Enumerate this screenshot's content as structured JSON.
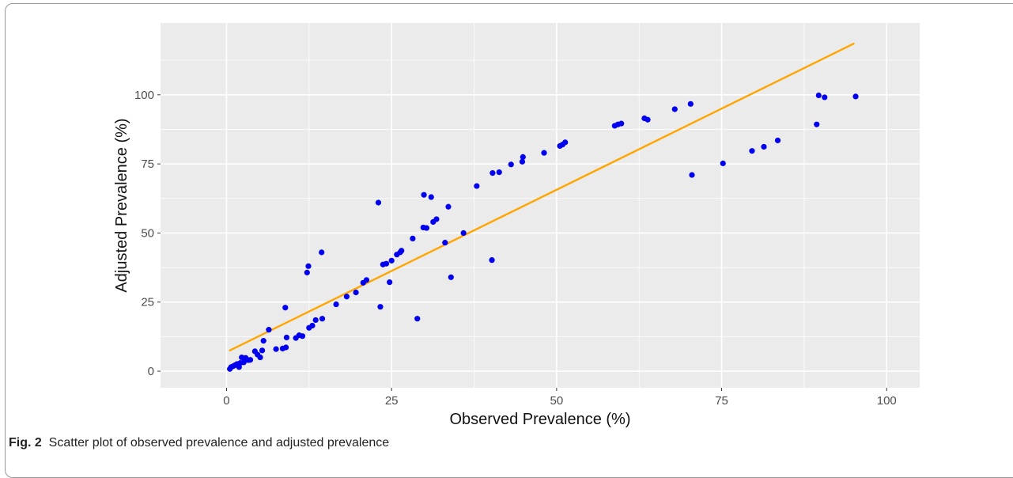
{
  "caption": {
    "label": "Fig. 2",
    "text": "Scatter plot of observed prevalence and adjusted prevalence"
  },
  "chart_data": {
    "type": "scatter",
    "xlabel": "Observed Prevalence (%)",
    "ylabel": "Adjusted Prevalence (%)",
    "xlim": [
      -10,
      105
    ],
    "ylim": [
      -6,
      126
    ],
    "xticks": [
      0,
      25,
      50,
      75,
      100
    ],
    "yticks": [
      0,
      25,
      50,
      75,
      100
    ],
    "grid": true,
    "colors": {
      "panel": "#ebebeb",
      "grid": "#ffffff",
      "points": "#0000ee",
      "fit_line": "#ffa500",
      "axis_text": "#4d4d4d"
    },
    "points": [
      [
        0.5,
        0.8
      ],
      [
        0.7,
        1.5
      ],
      [
        1.0,
        1.8
      ],
      [
        1.3,
        2.2
      ],
      [
        1.6,
        2.6
      ],
      [
        1.9,
        1.5
      ],
      [
        2.1,
        3.0
      ],
      [
        2.3,
        5.0
      ],
      [
        2.6,
        3.2
      ],
      [
        2.9,
        4.8
      ],
      [
        3.3,
        4.0
      ],
      [
        3.6,
        4.1
      ],
      [
        4.3,
        7.2
      ],
      [
        4.7,
        6.0
      ],
      [
        5.1,
        5.0
      ],
      [
        5.4,
        7.5
      ],
      [
        5.6,
        11.0
      ],
      [
        6.4,
        15.0
      ],
      [
        7.5,
        8.0
      ],
      [
        8.5,
        8.2
      ],
      [
        8.9,
        23.0
      ],
      [
        9.0,
        8.6
      ],
      [
        9.1,
        12.2
      ],
      [
        10.5,
        12.0
      ],
      [
        11.0,
        13.0
      ],
      [
        11.5,
        12.7
      ],
      [
        12.2,
        35.7
      ],
      [
        12.4,
        38.0
      ],
      [
        12.5,
        15.7
      ],
      [
        13.0,
        16.5
      ],
      [
        13.5,
        18.5
      ],
      [
        14.4,
        43.0
      ],
      [
        14.5,
        19.0
      ],
      [
        16.6,
        24.2
      ],
      [
        18.2,
        27.0
      ],
      [
        19.6,
        28.5
      ],
      [
        20.7,
        32.0
      ],
      [
        21.2,
        33.0
      ],
      [
        23.0,
        61.0
      ],
      [
        23.3,
        23.3
      ],
      [
        23.7,
        38.6
      ],
      [
        24.2,
        38.9
      ],
      [
        24.7,
        32.2
      ],
      [
        25.0,
        40.0
      ],
      [
        25.8,
        42.2
      ],
      [
        26.3,
        43.0
      ],
      [
        26.5,
        43.6
      ],
      [
        28.2,
        48.0
      ],
      [
        28.9,
        19.0
      ],
      [
        29.8,
        52.0
      ],
      [
        29.9,
        63.8
      ],
      [
        30.3,
        51.8
      ],
      [
        31.0,
        63.0
      ],
      [
        31.3,
        54.0
      ],
      [
        31.8,
        55.0
      ],
      [
        33.1,
        46.5
      ],
      [
        33.6,
        59.5
      ],
      [
        34.0,
        34.0
      ],
      [
        35.9,
        50.0
      ],
      [
        37.9,
        67.0
      ],
      [
        40.2,
        40.2
      ],
      [
        40.3,
        71.7
      ],
      [
        41.3,
        72.0
      ],
      [
        43.1,
        74.8
      ],
      [
        44.8,
        75.8
      ],
      [
        44.9,
        77.5
      ],
      [
        48.1,
        79.0
      ],
      [
        50.5,
        81.5
      ],
      [
        50.9,
        82.0
      ],
      [
        51.3,
        82.8
      ],
      [
        58.8,
        88.8
      ],
      [
        59.3,
        89.3
      ],
      [
        59.8,
        89.6
      ],
      [
        63.3,
        91.5
      ],
      [
        63.8,
        91.0
      ],
      [
        67.9,
        94.8
      ],
      [
        70.3,
        96.7
      ],
      [
        70.5,
        71.0
      ],
      [
        75.2,
        75.2
      ],
      [
        79.6,
        79.7
      ],
      [
        81.4,
        81.2
      ],
      [
        83.5,
        83.5
      ],
      [
        89.4,
        89.3
      ],
      [
        89.7,
        99.8
      ],
      [
        90.6,
        99.1
      ],
      [
        95.3,
        99.4
      ]
    ],
    "fit_line": {
      "x": [
        0.5,
        95.0
      ],
      "y": [
        7.5,
        118.5
      ]
    }
  }
}
